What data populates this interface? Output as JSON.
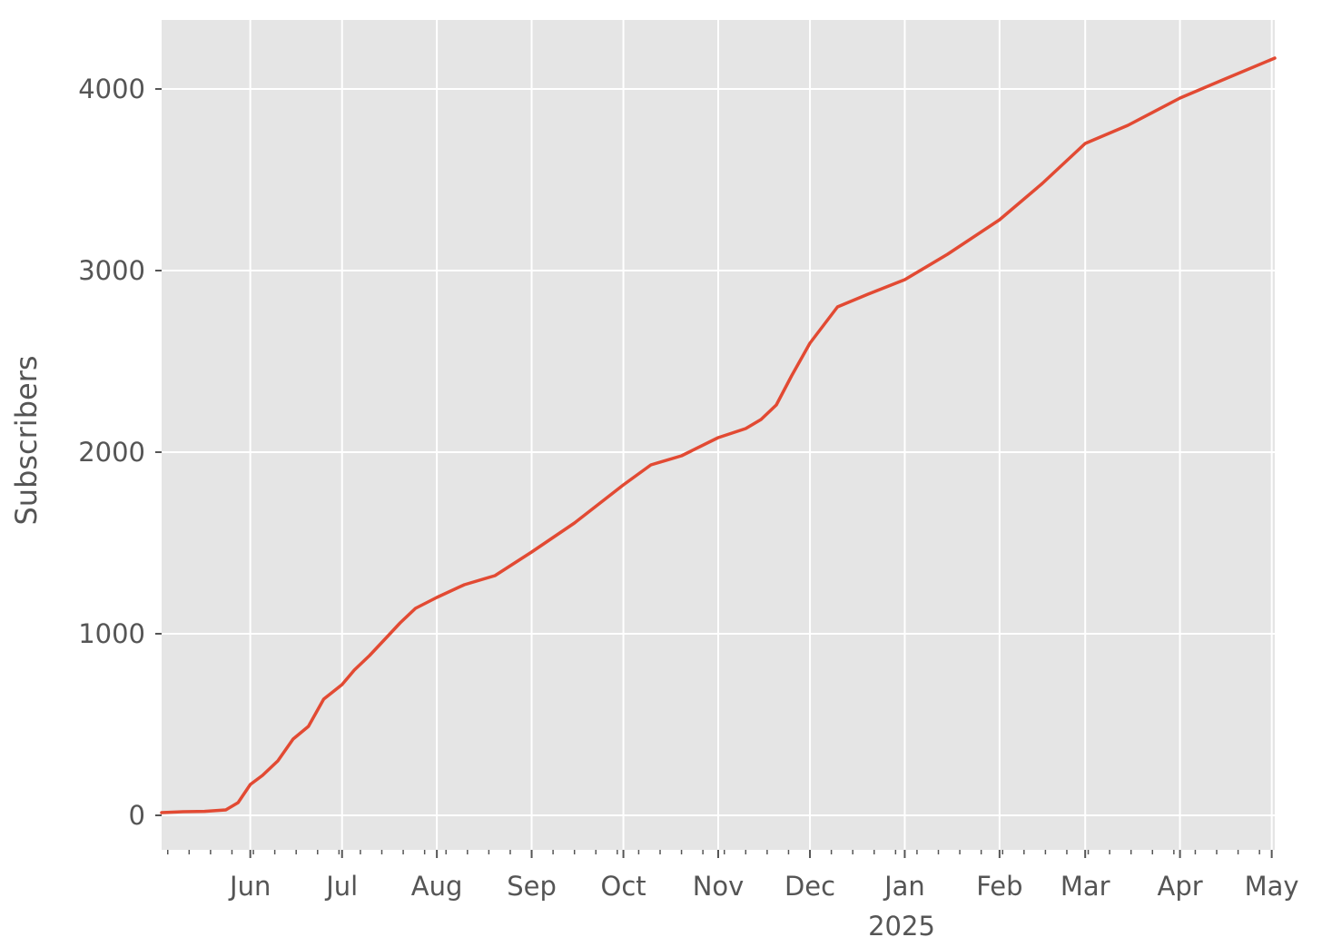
{
  "chart_data": {
    "type": "line",
    "title": "",
    "xlabel": "",
    "ylabel": "Subscribers",
    "x_year_label": "2025",
    "xlim": [
      "2024-05-03",
      "2025-05-02"
    ],
    "ylim": [
      -190,
      4380
    ],
    "y_ticks": [
      0,
      1000,
      2000,
      3000,
      4000
    ],
    "x_ticks": [
      {
        "date": "2024-06-01",
        "label": "Jun"
      },
      {
        "date": "2024-07-01",
        "label": "Jul"
      },
      {
        "date": "2024-08-01",
        "label": "Aug"
      },
      {
        "date": "2024-09-01",
        "label": "Sep"
      },
      {
        "date": "2024-10-01",
        "label": "Oct"
      },
      {
        "date": "2024-11-01",
        "label": "Nov"
      },
      {
        "date": "2024-12-01",
        "label": "Dec"
      },
      {
        "date": "2025-01-01",
        "label": "Jan"
      },
      {
        "date": "2025-02-01",
        "label": "Feb"
      },
      {
        "date": "2025-03-01",
        "label": "Mar"
      },
      {
        "date": "2025-04-01",
        "label": "Apr"
      },
      {
        "date": "2025-05-01",
        "label": "May"
      }
    ],
    "grid": true,
    "style": "ggplot",
    "colors": {
      "line": "#E24A33",
      "background": "#E5E5E5",
      "grid": "#FFFFFF",
      "text": "#555555"
    },
    "series": [
      {
        "name": "",
        "x": [
          "2024-05-03",
          "2024-05-10",
          "2024-05-17",
          "2024-05-24",
          "2024-05-28",
          "2024-06-01",
          "2024-06-05",
          "2024-06-10",
          "2024-06-15",
          "2024-06-20",
          "2024-06-25",
          "2024-07-01",
          "2024-07-05",
          "2024-07-10",
          "2024-07-15",
          "2024-07-20",
          "2024-07-25",
          "2024-08-01",
          "2024-08-10",
          "2024-08-20",
          "2024-09-01",
          "2024-09-15",
          "2024-10-01",
          "2024-10-10",
          "2024-10-20",
          "2024-11-01",
          "2024-11-10",
          "2024-11-15",
          "2024-11-20",
          "2024-11-25",
          "2024-12-01",
          "2024-12-10",
          "2024-12-20",
          "2025-01-01",
          "2025-01-15",
          "2025-02-01",
          "2025-02-15",
          "2025-03-01",
          "2025-03-15",
          "2025-04-01",
          "2025-04-15",
          "2025-05-02"
        ],
        "y": [
          15,
          20,
          22,
          30,
          70,
          170,
          220,
          300,
          420,
          490,
          640,
          720,
          800,
          880,
          970,
          1060,
          1140,
          1200,
          1270,
          1320,
          1450,
          1610,
          1820,
          1930,
          1980,
          2080,
          2130,
          2180,
          2260,
          2420,
          2600,
          2800,
          2870,
          2950,
          3090,
          3280,
          3480,
          3700,
          3800,
          3950,
          4050,
          4170
        ]
      }
    ]
  }
}
